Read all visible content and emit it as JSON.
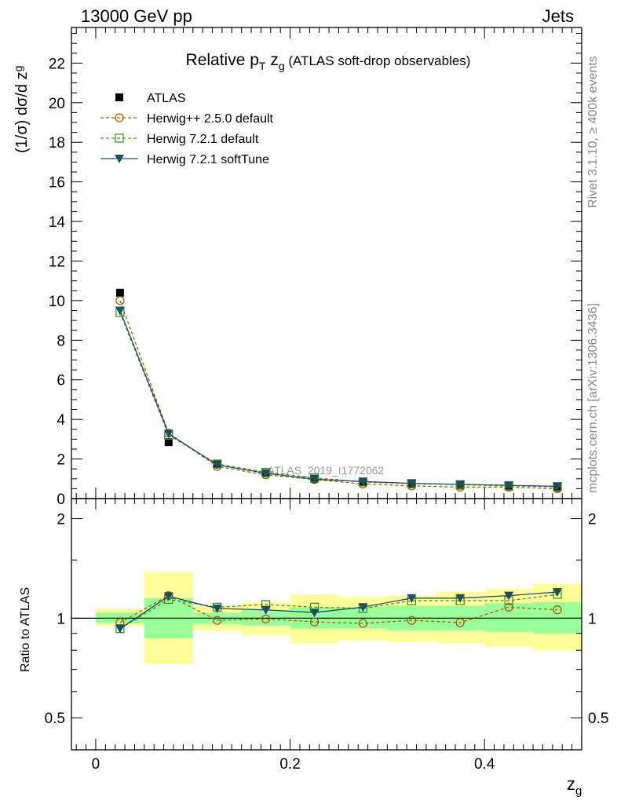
{
  "header": {
    "left": "13000 GeV pp",
    "right": "Jets"
  },
  "side_labels": {
    "top": "Rivet 3.1.10, ≥ 400k events",
    "bottom": "mcplots.cern.ch [arXiv:1306.3436]"
  },
  "watermark": "ATLAS_2019_I1772062",
  "chart_data": [
    {
      "type": "scatter",
      "panel": "main",
      "title_parts": {
        "lead": "Relative p",
        "sub_T": "T",
        "mid": " z",
        "sub_g": "g",
        "tail": " (ATLAS soft-drop observables)"
      },
      "ylabel_parts": {
        "lead": "(1/σ) dσ/d z",
        "sub": "g"
      },
      "xlim": [
        -0.025,
        0.5
      ],
      "ylim": [
        0,
        23.8
      ],
      "yticks": [
        0,
        2,
        4,
        6,
        8,
        10,
        12,
        14,
        16,
        18,
        20,
        22
      ],
      "ytick_labels": [
        "0",
        "2",
        "4",
        "6",
        "8",
        "10",
        "12",
        "14",
        "16",
        "18",
        "20",
        "22"
      ],
      "x": [
        0.025,
        0.075,
        0.125,
        0.175,
        0.225,
        0.275,
        0.325,
        0.375,
        0.425,
        0.475
      ],
      "legend": [
        "ATLAS",
        "Herwig++ 2.5.0 default",
        "Herwig 7.2.1 default",
        "Herwig 7.2.1 softTune"
      ],
      "series": [
        {
          "name": "ATLAS",
          "marker": "square-filled",
          "color": "#000000",
          "values": [
            10.4,
            2.85,
            1.72,
            1.28,
            1.0,
            0.82,
            0.72,
            0.66,
            0.6,
            0.55
          ]
        },
        {
          "name": "Herwig++ 2.5.0 default",
          "marker": "circle-open",
          "color": "#b35900",
          "dash": true,
          "values": [
            10.0,
            3.3,
            1.62,
            1.2,
            0.96,
            0.74,
            0.64,
            0.58,
            0.58,
            0.5
          ]
        },
        {
          "name": "Herwig 7.2.1 default",
          "marker": "square-open",
          "color": "#3a9a1a",
          "dash": true,
          "values": [
            9.4,
            3.2,
            1.75,
            1.33,
            1.05,
            0.84,
            0.76,
            0.7,
            0.64,
            0.6
          ]
        },
        {
          "name": "Herwig 7.2.1 softTune",
          "marker": "triangle-down-filled",
          "color": "#1c4f63",
          "dash": false,
          "values": [
            9.5,
            3.28,
            1.7,
            1.28,
            0.98,
            0.86,
            0.77,
            0.72,
            0.67,
            0.62
          ]
        }
      ]
    },
    {
      "type": "scatter",
      "panel": "ratio",
      "ylabel": "Ratio to ATLAS",
      "xlabel_parts": {
        "lead": "z",
        "sub": "g"
      },
      "xlim": [
        -0.025,
        0.5
      ],
      "ylim_log": [
        0.4,
        2.3
      ],
      "yticks": [
        0.5,
        1,
        2
      ],
      "ytick_labels": [
        "0.5",
        "1",
        "2"
      ],
      "xticks": [
        0,
        0.2,
        0.4
      ],
      "xtick_labels": [
        "0",
        "0.2",
        "0.4"
      ],
      "bin_edges": [
        0.0,
        0.05,
        0.1,
        0.15,
        0.2,
        0.25,
        0.3,
        0.35,
        0.4,
        0.45,
        0.5
      ],
      "band_inner": [
        [
          0.97,
          1.04
        ],
        [
          0.87,
          1.15
        ],
        [
          0.96,
          1.04
        ],
        [
          0.95,
          1.06
        ],
        [
          0.93,
          1.08
        ],
        [
          0.93,
          1.08
        ],
        [
          0.92,
          1.09
        ],
        [
          0.92,
          1.09
        ],
        [
          0.91,
          1.11
        ],
        [
          0.9,
          1.12
        ]
      ],
      "band_outer": [
        [
          0.95,
          1.07
        ],
        [
          0.73,
          1.38
        ],
        [
          0.92,
          1.09
        ],
        [
          0.89,
          1.12
        ],
        [
          0.84,
          1.18
        ],
        [
          0.86,
          1.16
        ],
        [
          0.85,
          1.17
        ],
        [
          0.84,
          1.2
        ],
        [
          0.82,
          1.23
        ],
        [
          0.8,
          1.27
        ]
      ],
      "series": [
        {
          "name": "Herwig++ 2.5.0 default",
          "values": [
            0.97,
            1.17,
            0.985,
            0.995,
            0.975,
            0.965,
            0.985,
            0.97,
            1.08,
            1.06
          ]
        },
        {
          "name": "Herwig 7.2.1 default",
          "values": [
            0.93,
            1.14,
            1.08,
            1.1,
            1.08,
            1.07,
            1.13,
            1.13,
            1.13,
            1.18
          ]
        },
        {
          "name": "Herwig 7.2.1 softTune",
          "values": [
            0.93,
            1.165,
            1.07,
            1.06,
            1.04,
            1.08,
            1.15,
            1.15,
            1.17,
            1.2
          ]
        }
      ]
    }
  ]
}
